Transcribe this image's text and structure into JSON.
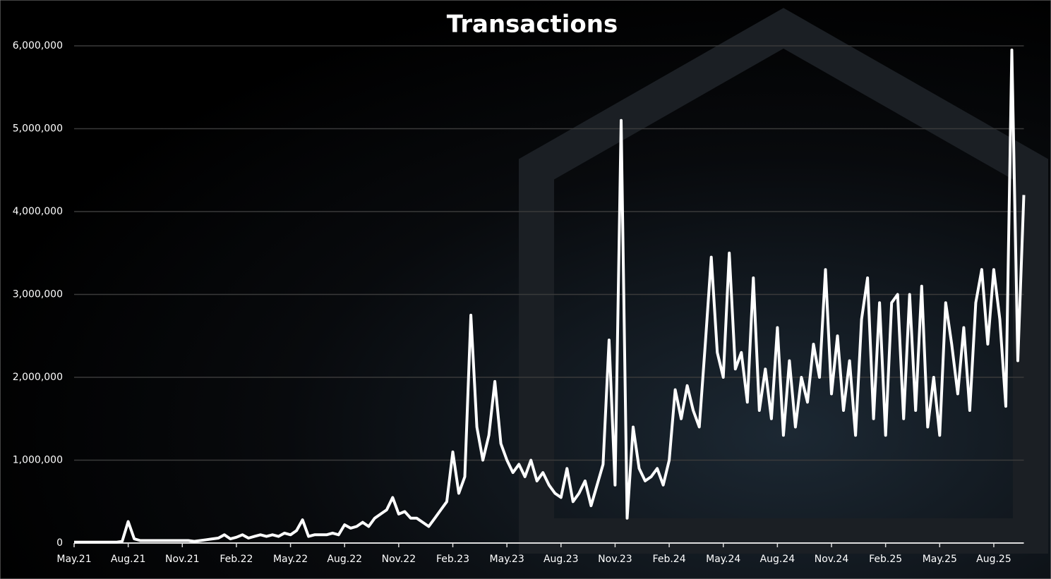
{
  "chart_data": {
    "type": "line",
    "title": "Transactions",
    "categories": [
      "May.21",
      null,
      null,
      null,
      null,
      null,
      null,
      null,
      null,
      "Aug.21",
      null,
      null,
      null,
      null,
      null,
      null,
      null,
      null,
      "Nov.21",
      null,
      null,
      null,
      null,
      null,
      null,
      null,
      null,
      "Feb.22",
      null,
      null,
      null,
      null,
      null,
      null,
      null,
      null,
      "May.22",
      null,
      null,
      null,
      null,
      null,
      null,
      null,
      null,
      "Aug.22",
      null,
      null,
      null,
      null,
      null,
      null,
      null,
      null,
      "Nov.22",
      null,
      null,
      null,
      null,
      null,
      null,
      null,
      null,
      "Feb.23",
      null,
      null,
      null,
      null,
      null,
      null,
      null,
      null,
      "May.23",
      null,
      null,
      null,
      null,
      null,
      null,
      null,
      null,
      "Aug.23",
      null,
      null,
      null,
      null,
      null,
      null,
      null,
      null,
      "Nov.23",
      null,
      null,
      null,
      null,
      null,
      null,
      null,
      null,
      "Feb.24",
      null,
      null,
      null,
      null,
      null,
      null,
      null,
      null,
      "May.24",
      null,
      null,
      null,
      null,
      null,
      null,
      null,
      null,
      "Aug.24",
      null,
      null,
      null,
      null,
      null,
      null,
      null,
      null,
      "Nov.24",
      null,
      null,
      null,
      null,
      null,
      null,
      null,
      null,
      "Feb.25",
      null,
      null,
      null,
      null,
      null,
      null,
      null,
      null,
      "May.25",
      null,
      null,
      null,
      null,
      null,
      null,
      null,
      null,
      "Aug.25",
      null,
      null,
      null,
      null,
      null
    ],
    "series": [
      {
        "name": "Transactions",
        "color": "#ffffff",
        "values": [
          10000,
          10000,
          10000,
          10000,
          10000,
          10000,
          10000,
          10000,
          20000,
          260000,
          50000,
          30000,
          30000,
          30000,
          30000,
          30000,
          30000,
          30000,
          30000,
          30000,
          20000,
          30000,
          40000,
          50000,
          60000,
          100000,
          50000,
          70000,
          100000,
          60000,
          80000,
          100000,
          80000,
          100000,
          80000,
          120000,
          100000,
          150000,
          280000,
          80000,
          100000,
          100000,
          100000,
          120000,
          100000,
          220000,
          180000,
          200000,
          250000,
          200000,
          300000,
          350000,
          400000,
          550000,
          350000,
          380000,
          300000,
          300000,
          250000,
          200000,
          300000,
          400000,
          500000,
          1100000,
          600000,
          800000,
          2750000,
          1400000,
          1000000,
          1300000,
          1950000,
          1200000,
          1000000,
          850000,
          950000,
          800000,
          1000000,
          750000,
          850000,
          700000,
          600000,
          550000,
          900000,
          500000,
          600000,
          750000,
          450000,
          700000,
          950000,
          2450000,
          700000,
          5100000,
          300000,
          1400000,
          900000,
          750000,
          800000,
          900000,
          700000,
          1000000,
          1850000,
          1500000,
          1900000,
          1600000,
          1400000,
          2400000,
          3450000,
          2300000,
          2000000,
          3500000,
          2100000,
          2300000,
          1700000,
          3200000,
          1600000,
          2100000,
          1500000,
          2600000,
          1300000,
          2200000,
          1400000,
          2000000,
          1700000,
          2400000,
          2000000,
          3300000,
          1800000,
          2500000,
          1600000,
          2200000,
          1300000,
          2700000,
          3200000,
          1500000,
          2900000,
          1300000,
          2900000,
          3000000,
          1500000,
          3000000,
          1600000,
          3100000,
          1400000,
          2000000,
          1300000,
          2900000,
          2400000,
          1800000,
          2600000,
          1600000,
          2900000,
          3300000,
          2400000,
          3300000,
          2700000,
          1650000,
          5950000,
          2200000,
          4200000
        ]
      }
    ],
    "ylim": [
      0,
      6000000
    ],
    "yticks": [
      {
        "value": 0,
        "label": "0"
      },
      {
        "value": 1000000,
        "label": "1,000,000"
      },
      {
        "value": 2000000,
        "label": "2,000,000"
      },
      {
        "value": 3000000,
        "label": "3,000,000"
      },
      {
        "value": 4000000,
        "label": "4,000,000"
      },
      {
        "value": 5000000,
        "label": "5,000,000"
      },
      {
        "value": 6000000,
        "label": "6,000,000"
      }
    ],
    "grid": true
  }
}
